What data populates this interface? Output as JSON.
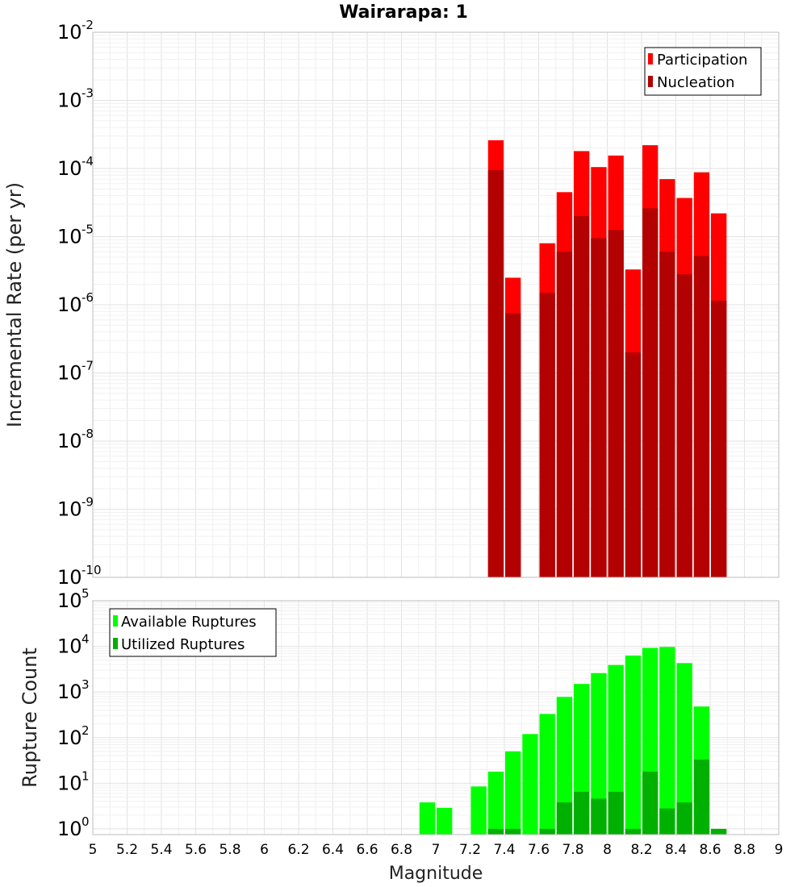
{
  "chart_data": [
    {
      "type": "bar",
      "title": "Wairarapa: 1",
      "ylabel": "Incremental Rate (per yr)",
      "xlabel": "",
      "y_scale": "log",
      "xlim": [
        5,
        9
      ],
      "ylim": [
        1e-10,
        0.01
      ],
      "bin_width": 0.1,
      "grid": true,
      "legend_placement": "top-right",
      "series": [
        {
          "name": "Participation",
          "color": "#ff0000",
          "points": [
            [
              7.35,
              0.00026
            ],
            [
              7.45,
              2.5e-06
            ],
            [
              7.65,
              8e-06
            ],
            [
              7.75,
              4.5e-05
            ],
            [
              7.85,
              0.00018
            ],
            [
              7.95,
              0.000105
            ],
            [
              8.05,
              0.000155
            ],
            [
              8.15,
              3.3e-06
            ],
            [
              8.25,
              0.00022
            ],
            [
              8.35,
              7e-05
            ],
            [
              8.45,
              3.7e-05
            ],
            [
              8.55,
              8.8e-05
            ],
            [
              8.65,
              2.2e-05
            ]
          ]
        },
        {
          "name": "Nucleation",
          "color": "#b30000",
          "points": [
            [
              7.35,
              9.5e-05
            ],
            [
              7.45,
              7.5e-07
            ],
            [
              7.65,
              1.5e-06
            ],
            [
              7.75,
              6e-06
            ],
            [
              7.85,
              2e-05
            ],
            [
              7.95,
              9.5e-06
            ],
            [
              8.05,
              1.25e-05
            ],
            [
              8.15,
              2e-07
            ],
            [
              8.25,
              2.6e-05
            ],
            [
              8.35,
              6e-06
            ],
            [
              8.45,
              2.8e-06
            ],
            [
              8.55,
              5.2e-06
            ],
            [
              8.65,
              1.15e-06
            ]
          ]
        }
      ]
    },
    {
      "type": "bar",
      "title": "",
      "ylabel": "Rupture Count",
      "xlabel": "Magnitude",
      "y_scale": "log",
      "xlim": [
        5,
        9
      ],
      "ylim": [
        0.75,
        100000.0
      ],
      "bin_width": 0.1,
      "grid": true,
      "legend_placement": "top-left",
      "x_ticks": [
        "5",
        "5.2",
        "5.4",
        "5.6",
        "5.8",
        "6",
        "6.2",
        "6.4",
        "6.6",
        "6.8",
        "7",
        "7.2",
        "7.4",
        "7.6",
        "7.8",
        "8",
        "8.2",
        "8.4",
        "8.6",
        "8.8",
        "9"
      ],
      "series": [
        {
          "name": "Available Ruptures",
          "color": "#00ff00",
          "points": [
            [
              6.95,
              3.8
            ],
            [
              7.05,
              2.9
            ],
            [
              7.25,
              8.5
            ],
            [
              7.35,
              18
            ],
            [
              7.45,
              50
            ],
            [
              7.55,
              120
            ],
            [
              7.65,
              330
            ],
            [
              7.75,
              780
            ],
            [
              7.85,
              1500
            ],
            [
              7.95,
              2600
            ],
            [
              8.05,
              3900
            ],
            [
              8.15,
              6300
            ],
            [
              8.25,
              9300
            ],
            [
              8.35,
              9700
            ],
            [
              8.45,
              4300
            ],
            [
              8.55,
              480
            ]
          ]
        },
        {
          "name": "Utilized Ruptures",
          "color": "#00b000",
          "points": [
            [
              7.35,
              1
            ],
            [
              7.45,
              1
            ],
            [
              7.65,
              1
            ],
            [
              7.75,
              3.8
            ],
            [
              7.85,
              6.5
            ],
            [
              7.95,
              4.6
            ],
            [
              8.05,
              6.5
            ],
            [
              8.15,
              1
            ],
            [
              8.25,
              18
            ],
            [
              8.35,
              2.8
            ],
            [
              8.45,
              3.8
            ],
            [
              8.55,
              33
            ],
            [
              8.65,
              1
            ]
          ]
        }
      ]
    }
  ]
}
